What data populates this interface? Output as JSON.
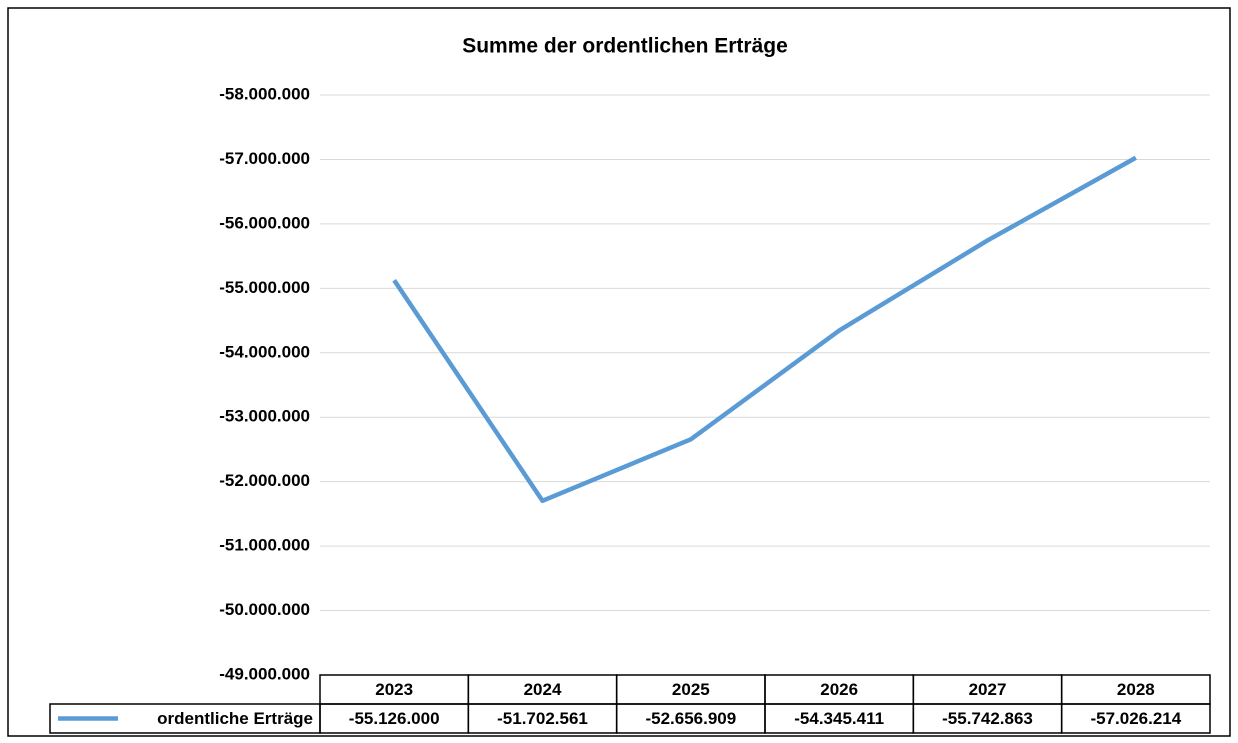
{
  "chart_data": {
    "type": "line",
    "title": "Summe der ordentlichen Erträge",
    "categories": [
      "2023",
      "2024",
      "2025",
      "2026",
      "2027",
      "2028"
    ],
    "series": [
      {
        "name": "ordentliche Erträge",
        "color": "#5b9bd5",
        "values": [
          -55126000,
          -51702561,
          -52656909,
          -54345411,
          -55742863,
          -57026214
        ],
        "value_labels": [
          "-55.126.000",
          "-51.702.561",
          "-52.656.909",
          "-54.345.411",
          "-55.742.863",
          "-57.026.214"
        ]
      }
    ],
    "ylim": [
      -49000000,
      -58000000
    ],
    "yticks": [
      {
        "value": -58000000,
        "label": "-58.000.000"
      },
      {
        "value": -57000000,
        "label": "-57.000.000"
      },
      {
        "value": -56000000,
        "label": "-56.000.000"
      },
      {
        "value": -55000000,
        "label": "-55.000.000"
      },
      {
        "value": -54000000,
        "label": "-54.000.000"
      },
      {
        "value": -53000000,
        "label": "-53.000.000"
      },
      {
        "value": -52000000,
        "label": "-52.000.000"
      },
      {
        "value": -51000000,
        "label": "-51.000.000"
      },
      {
        "value": -50000000,
        "label": "-50.000.000"
      },
      {
        "value": -49000000,
        "label": "-49.000.000"
      }
    ],
    "grid": true
  }
}
